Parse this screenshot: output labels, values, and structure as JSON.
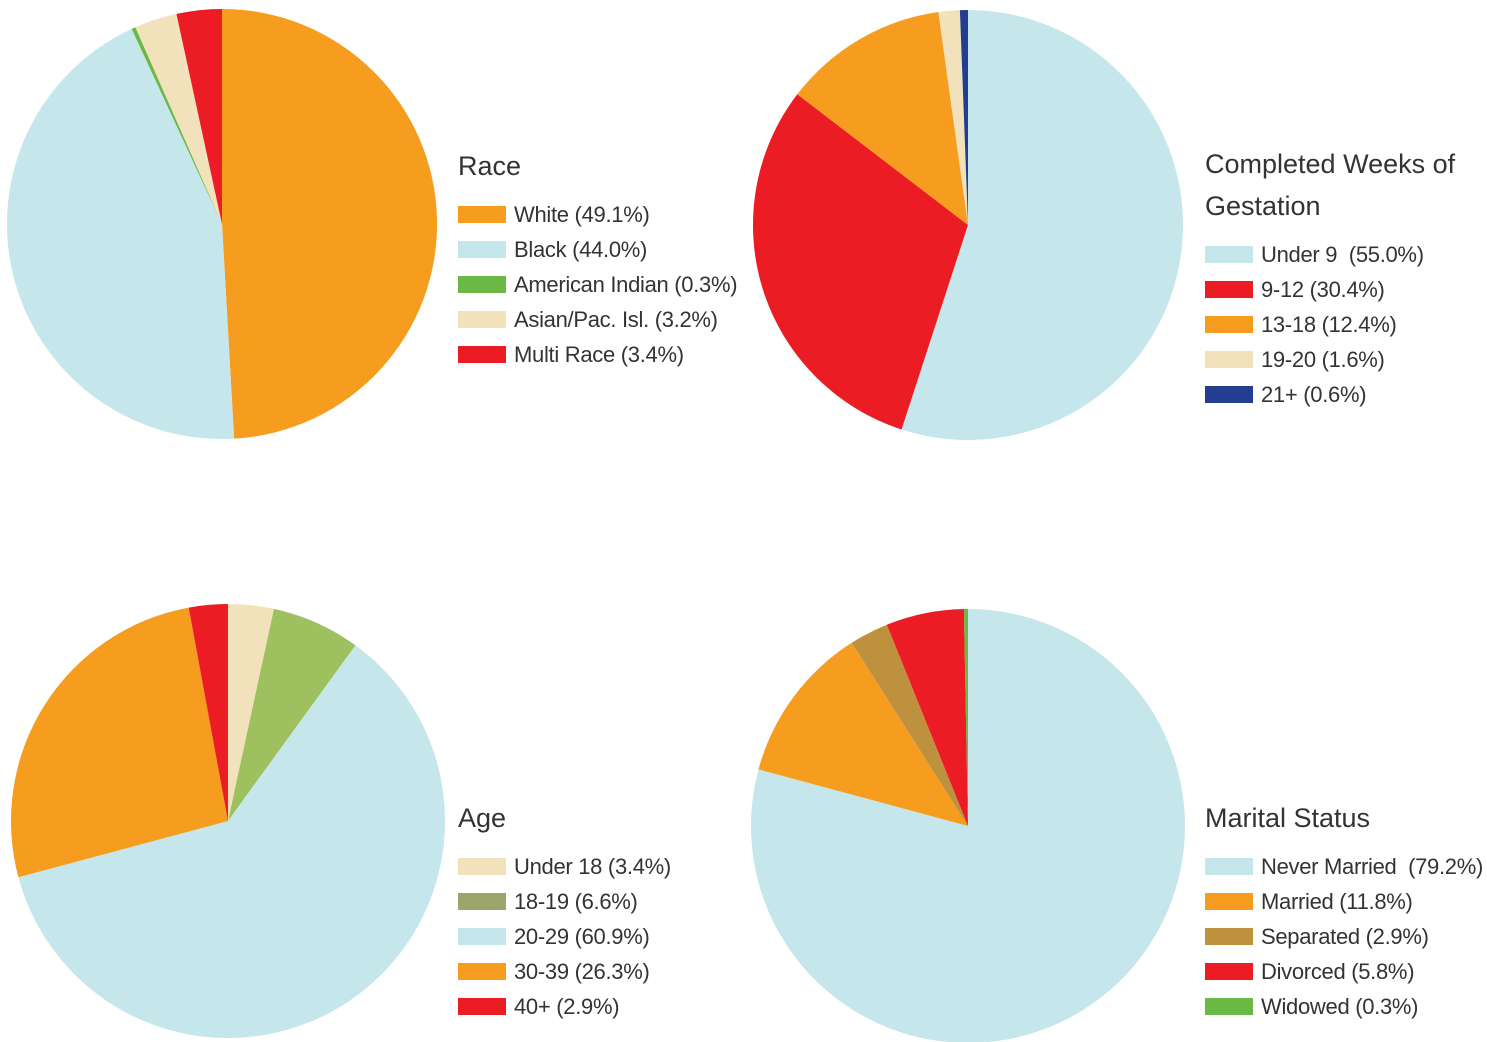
{
  "chart_data": [
    {
      "type": "pie",
      "title": "Race",
      "categories": [
        "White",
        "Black",
        "American Indian",
        "Asian/Pac. Isl.",
        "Multi Race"
      ],
      "values": [
        49.1,
        44.0,
        0.3,
        3.2,
        3.4
      ],
      "legend_labels": [
        "White (49.1%)",
        "Black (44.0%)",
        "American Indian (0.3%)",
        "Asian/Pac. Isl. (3.2%)",
        "Multi Race (3.4%)"
      ],
      "colors": [
        "#f69c1e",
        "#c5e6ea",
        "#6ab845",
        "#f1e2bb",
        "#ec1c24"
      ],
      "legend_placement": "right"
    },
    {
      "type": "pie",
      "title": "Completed Weeks of Gestation",
      "categories": [
        "Under 9",
        "9-12",
        "13-18",
        "19-20",
        "21+"
      ],
      "values": [
        55.0,
        30.4,
        12.4,
        1.6,
        0.6
      ],
      "legend_labels": [
        "Under 9  (55.0%)",
        "9-12 (30.4%)",
        "13-18 (12.4%)",
        "19-20 (1.6%)",
        "21+ (0.6%)"
      ],
      "colors": [
        "#c5e6ea",
        "#ec1c24",
        "#f69c1e",
        "#f1e2bb",
        "#233e90"
      ],
      "legend_placement": "right"
    },
    {
      "type": "pie",
      "title": "Age",
      "categories": [
        "Under 18",
        "18-19",
        "20-29",
        "30-39",
        "40+"
      ],
      "values": [
        3.4,
        6.6,
        60.9,
        26.3,
        2.9
      ],
      "legend_labels": [
        "Under 18 (3.4%)",
        "18-19 (6.6%)",
        "20-29 (60.9%)",
        "30-39 (26.3%)",
        "40+ (2.9%)"
      ],
      "colors": [
        "#f1e2bb",
        "#9fc05f",
        "#c5e6ea",
        "#f69c1e",
        "#ec1c24"
      ],
      "legend_colors": [
        "#f1e2bb",
        "#9ca66c",
        "#c5e6ea",
        "#f69c1e",
        "#ec1c24"
      ],
      "legend_placement": "right"
    },
    {
      "type": "pie",
      "title": "Marital Status",
      "categories": [
        "Never Married",
        "Married",
        "Separated",
        "Divorced",
        "Widowed"
      ],
      "values": [
        79.2,
        11.8,
        2.9,
        5.8,
        0.3
      ],
      "legend_labels": [
        "Never Married  (79.2%)",
        "Married (11.8%)",
        "Separated (2.9%)",
        "Divorced (5.8%)",
        "Widowed (0.3%)"
      ],
      "colors": [
        "#c5e6ea",
        "#f69c1e",
        "#be913f",
        "#ec1c24",
        "#6ab845"
      ],
      "legend_placement": "right"
    }
  ]
}
